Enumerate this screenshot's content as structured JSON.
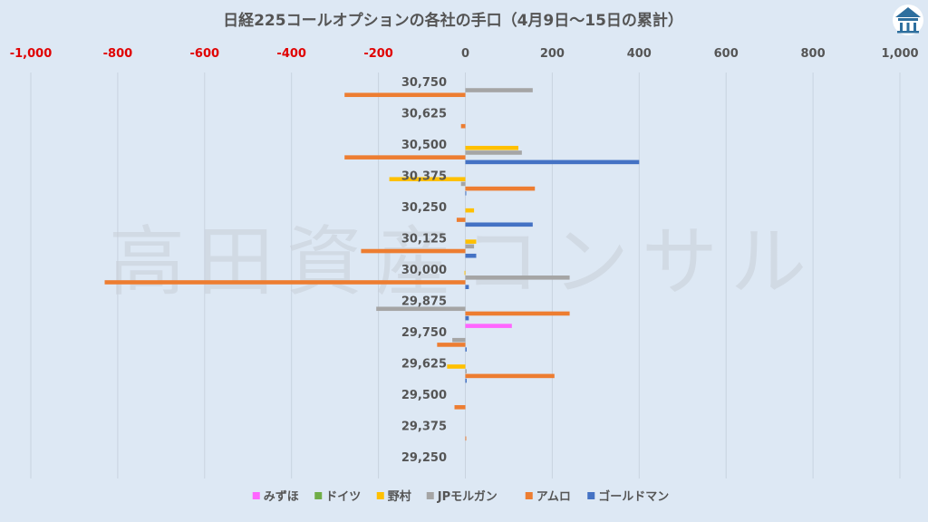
{
  "watermark": "高田資産コンサル",
  "colors": {
    "background": "#dde8f4",
    "negative_tick": "#e00000",
    "positive_tick": "#555555",
    "gridline": "#c9d3df",
    "logo": "#2e6f9e"
  },
  "logo_icon": "building-logo-icon",
  "chart_data": {
    "type": "bar",
    "orientation": "horizontal",
    "title": "日経225コールオプションの各社の手口（4月9日〜15日の累計）",
    "xlabel": "",
    "ylabel": "",
    "xlim": [
      -1000,
      1000
    ],
    "x_ticks": [
      -1000,
      -800,
      -600,
      -400,
      -200,
      0,
      200,
      400,
      600,
      800,
      1000
    ],
    "x_tick_labels": [
      "-1,000",
      "-800",
      "-600",
      "-400",
      "-200",
      "0",
      "200",
      "400",
      "600",
      "800",
      "1,000"
    ],
    "x_axis_position": "top",
    "negative_tick_color": "red",
    "grid": "vertical",
    "legend": "bottom",
    "categories": [
      "30,750",
      "30,625",
      "30,500",
      "30,375",
      "30,250",
      "30,125",
      "30,000",
      "29,875",
      "29,750",
      "29,625",
      "29,500",
      "29,375",
      "29,250"
    ],
    "series": [
      {
        "name": "みずほ",
        "color": "#ff66ff",
        "values": [
          0,
          0,
          0,
          0,
          0,
          0,
          0,
          0,
          107,
          0,
          0,
          0,
          0
        ]
      },
      {
        "name": "ドイツ",
        "color": "#70ad47",
        "values": [
          0,
          0,
          0,
          0,
          0,
          0,
          0,
          0,
          0,
          0,
          0,
          0,
          0
        ]
      },
      {
        "name": "野村",
        "color": "#ffc000",
        "values": [
          0,
          0,
          122,
          -175,
          20,
          25,
          -2,
          0,
          0,
          -42,
          0,
          0,
          0
        ]
      },
      {
        "name": "JPモルガン",
        "color": "#a5a5a5",
        "values": [
          155,
          0,
          130,
          -10,
          0,
          20,
          240,
          -205,
          -30,
          3,
          0,
          0,
          0
        ]
      },
      {
        "name": "アムロ",
        "color": "#ed7d31",
        "values": [
          -278,
          -10,
          -278,
          160,
          -20,
          -240,
          -830,
          240,
          -65,
          205,
          -25,
          2,
          0
        ]
      },
      {
        "name": "ゴールドマン",
        "color": "#4472c4",
        "values": [
          0,
          0,
          400,
          2,
          155,
          25,
          8,
          8,
          3,
          3,
          0,
          0,
          0
        ]
      }
    ]
  }
}
